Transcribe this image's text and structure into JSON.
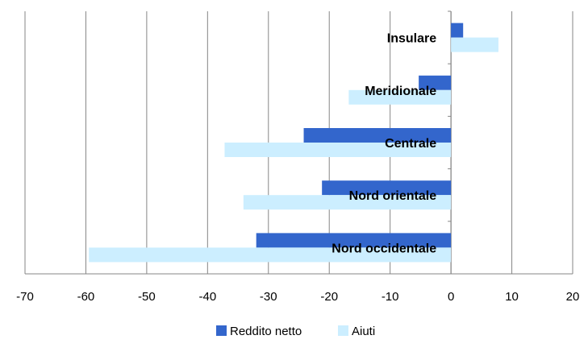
{
  "chart_data": {
    "type": "bar",
    "orientation": "horizontal",
    "categories": [
      "Insulare",
      "Meridionale",
      "Centrale",
      "Nord orientale",
      "Nord occidentale"
    ],
    "series": [
      {
        "name": "Reddito netto",
        "color": "#3366cc",
        "values": [
          2,
          -5.3,
          -24.2,
          -21.2,
          -32
        ]
      },
      {
        "name": "Aiuti",
        "color": "#cceeff",
        "values": [
          7.8,
          -16.8,
          -37.2,
          -34.1,
          -59.5
        ]
      }
    ],
    "xlim": [
      -70,
      20
    ],
    "xticks": [
      "-70",
      "-60",
      "-50",
      "-40",
      "-30",
      "-20",
      "-10",
      "0",
      "10",
      "20"
    ],
    "grid": "vertical",
    "legend_position": "bottom"
  }
}
